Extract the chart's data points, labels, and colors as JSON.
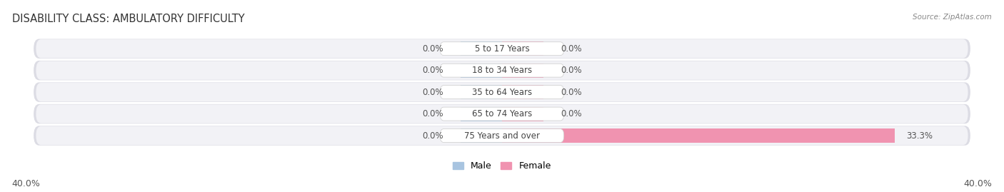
{
  "title": "DISABILITY CLASS: AMBULATORY DIFFICULTY",
  "source": "Source: ZipAtlas.com",
  "categories": [
    "5 to 17 Years",
    "18 to 34 Years",
    "35 to 64 Years",
    "65 to 74 Years",
    "75 Years and over"
  ],
  "male_values": [
    0.0,
    0.0,
    0.0,
    0.0,
    0.0
  ],
  "female_values": [
    0.0,
    0.0,
    0.0,
    0.0,
    33.3
  ],
  "xlim": 40.0,
  "male_color": "#a8c4e0",
  "female_color": "#f093b0",
  "row_bg_color": "#e8e8ee",
  "row_inner_color": "#f5f5f8",
  "label_color": "#555555",
  "title_fontsize": 10.5,
  "source_fontsize": 7.5,
  "axis_fontsize": 9,
  "legend_fontsize": 9,
  "category_fontsize": 8.5,
  "value_fontsize": 8.5,
  "background_color": "#ffffff",
  "min_bar_width": 3.5,
  "center_label_bg": "#ffffff"
}
